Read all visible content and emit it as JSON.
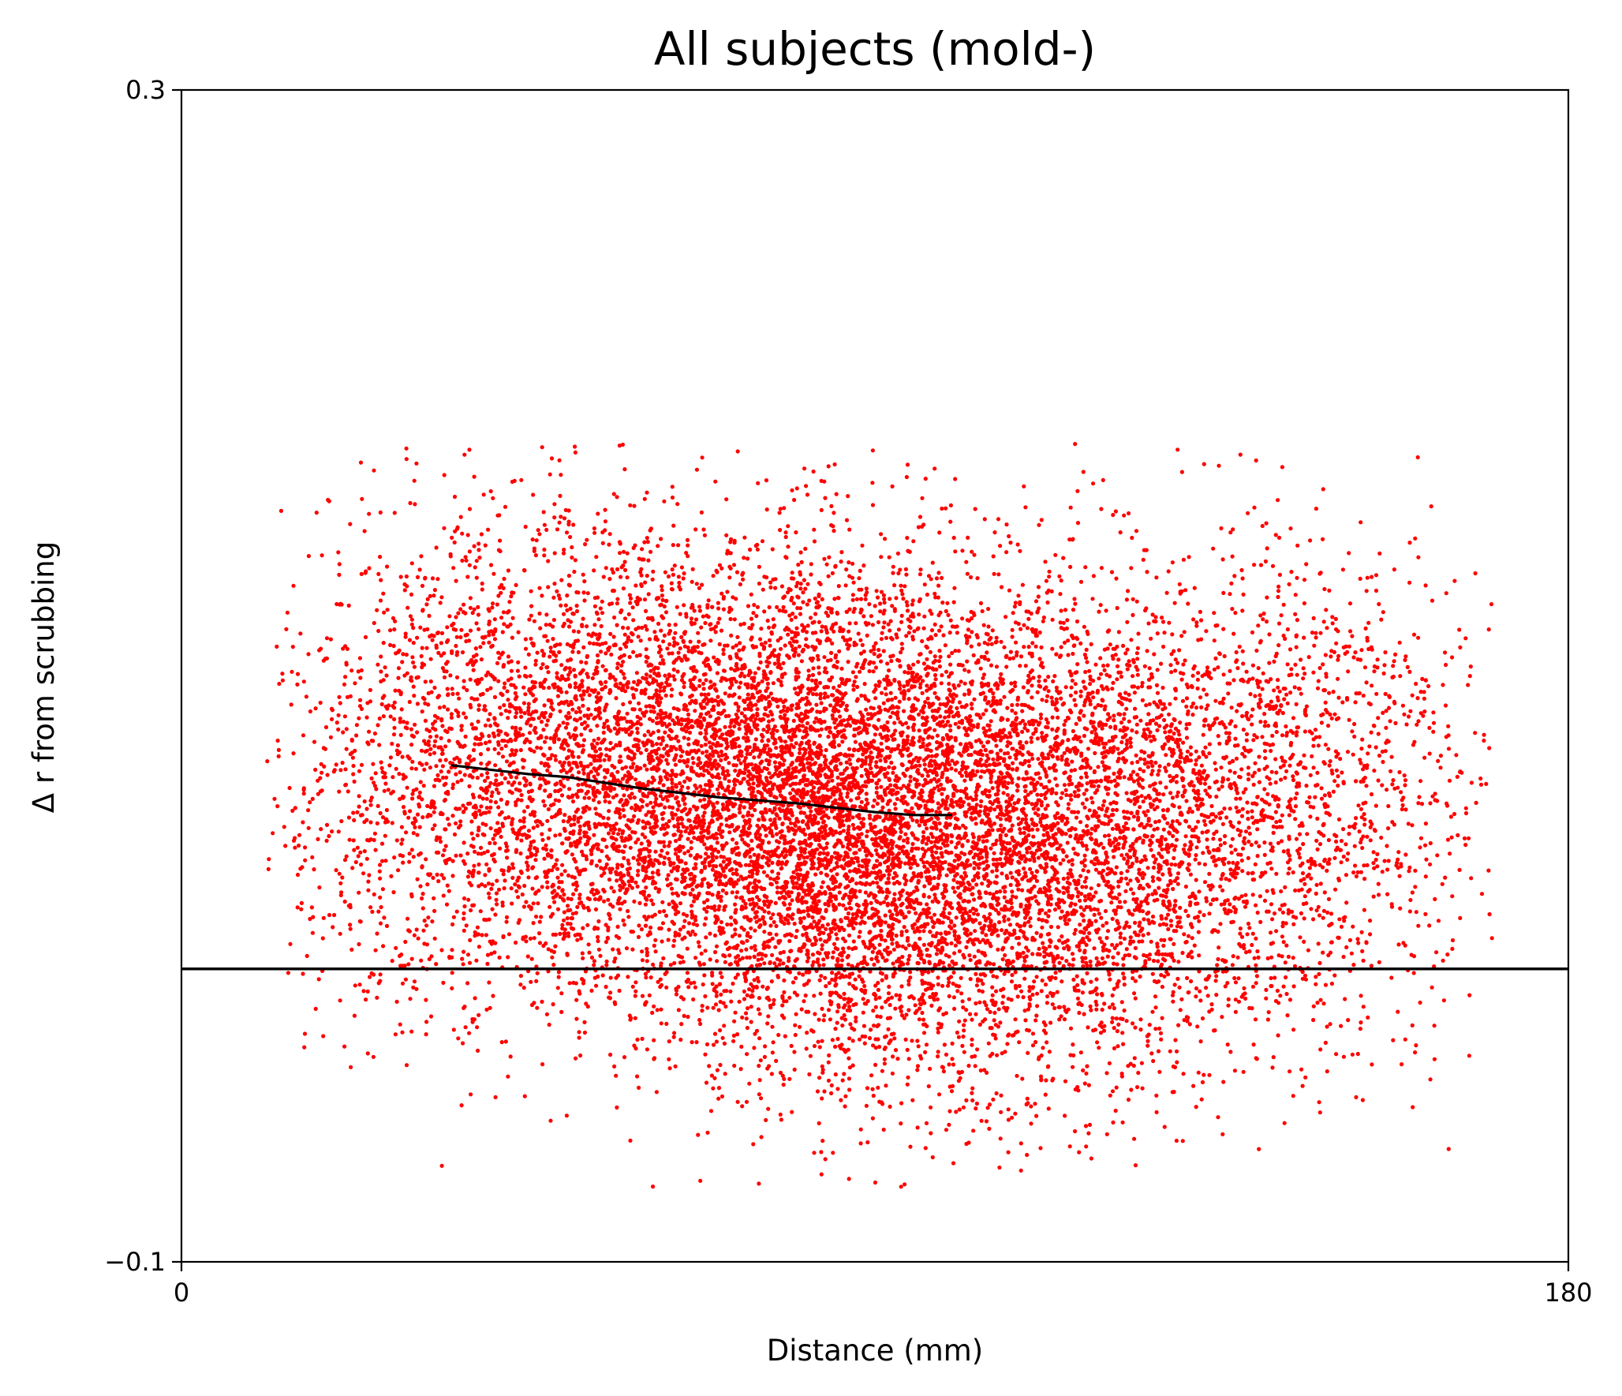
{
  "chart_data": {
    "type": "scatter",
    "title": "All subjects (mold-)",
    "xlabel": "Distance (mm)",
    "ylabel": "Δ r from scrubbing",
    "xlim": [
      0,
      180
    ],
    "ylim": [
      -0.1,
      0.3
    ],
    "xticks": [
      0,
      180
    ],
    "xtick_labels": [
      "0",
      "180"
    ],
    "yticks": [
      -0.1,
      0.3
    ],
    "ytick_labels": [
      "−0.1",
      "0.3"
    ],
    "grid": false,
    "legend": "none",
    "colors": {
      "points": "#ff0000",
      "trend": "#000000",
      "zero_line": "#000000",
      "axes": "#000000"
    },
    "reference_line": {
      "y": 0
    },
    "cloud": {
      "n_points": 14000,
      "x_range": [
        10,
        171
      ],
      "x_peak": 85,
      "center_y_at_x": [
        [
          10,
          0.06
        ],
        [
          35,
          0.07
        ],
        [
          60,
          0.065
        ],
        [
          85,
          0.052
        ],
        [
          110,
          0.045
        ],
        [
          135,
          0.052
        ],
        [
          160,
          0.065
        ],
        [
          171,
          0.065
        ]
      ],
      "spread_y": 0.042,
      "y_min": -0.075,
      "y_max": 0.18
    },
    "series": [
      {
        "type": "line",
        "x": [
          35,
          40,
          45,
          50,
          55,
          60,
          65,
          70,
          75,
          80,
          85,
          90,
          95,
          100
        ],
        "y": [
          0.0695,
          0.068,
          0.0665,
          0.0655,
          0.0635,
          0.0615,
          0.06,
          0.0585,
          0.0575,
          0.0565,
          0.055,
          0.0535,
          0.0525,
          0.0525
        ]
      }
    ]
  }
}
